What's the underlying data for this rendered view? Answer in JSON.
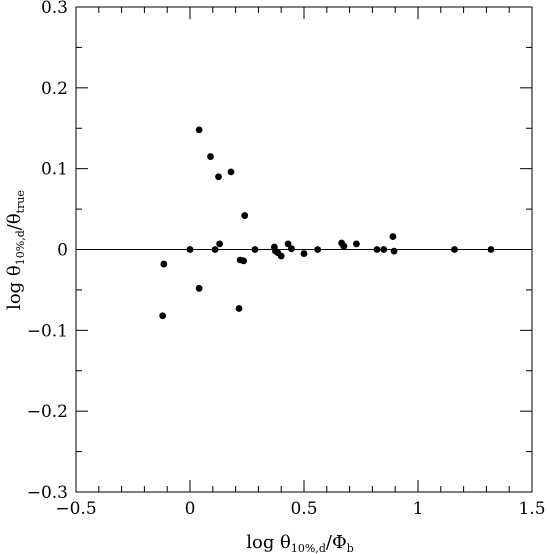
{
  "chart_data": {
    "type": "scatter",
    "xlabel": {
      "prefix": "log  θ",
      "sub": "10%,d",
      "suffix": "/Φ",
      "sub2": "b"
    },
    "ylabel": {
      "prefix": "log  θ",
      "sub": "10%,d",
      "suffix": "/θ",
      "sub2": "true"
    },
    "xlim": [
      -0.5,
      1.5
    ],
    "ylim": [
      -0.3,
      0.3
    ],
    "x_ticks": [
      -0.5,
      0,
      0.5,
      1,
      1.5
    ],
    "x_tick_labels": [
      "−0.5",
      "0",
      "0.5",
      "1",
      "1.5"
    ],
    "y_ticks": [
      -0.3,
      -0.2,
      -0.1,
      0,
      0.1,
      0.2,
      0.3
    ],
    "y_tick_labels": [
      "−0.3",
      "−0.2",
      "−0.1",
      "0",
      "0.1",
      "0.2",
      "0.3"
    ],
    "x_minor_step": 0.1,
    "y_minor_step": 0.05,
    "reference_line_y": 0,
    "grid": false,
    "points": [
      {
        "x": -0.12,
        "y": -0.082
      },
      {
        "x": -0.115,
        "y": -0.018
      },
      {
        "x": 0.0,
        "y": 0.0
      },
      {
        "x": 0.04,
        "y": 0.148
      },
      {
        "x": 0.04,
        "y": -0.048
      },
      {
        "x": 0.09,
        "y": 0.115
      },
      {
        "x": 0.11,
        "y": 0.0
      },
      {
        "x": 0.125,
        "y": 0.09
      },
      {
        "x": 0.13,
        "y": 0.007
      },
      {
        "x": 0.18,
        "y": 0.096
      },
      {
        "x": 0.215,
        "y": -0.073
      },
      {
        "x": 0.22,
        "y": -0.013
      },
      {
        "x": 0.235,
        "y": -0.014
      },
      {
        "x": 0.24,
        "y": 0.042
      },
      {
        "x": 0.285,
        "y": 0.0
      },
      {
        "x": 0.37,
        "y": 0.003
      },
      {
        "x": 0.375,
        "y": -0.002
      },
      {
        "x": 0.385,
        "y": -0.004
      },
      {
        "x": 0.4,
        "y": -0.008
      },
      {
        "x": 0.43,
        "y": 0.007
      },
      {
        "x": 0.445,
        "y": 0.001
      },
      {
        "x": 0.5,
        "y": -0.005
      },
      {
        "x": 0.56,
        "y": 0.0
      },
      {
        "x": 0.665,
        "y": 0.008
      },
      {
        "x": 0.675,
        "y": 0.004
      },
      {
        "x": 0.73,
        "y": 0.007
      },
      {
        "x": 0.82,
        "y": 0.0
      },
      {
        "x": 0.85,
        "y": 0.0
      },
      {
        "x": 0.89,
        "y": 0.016
      },
      {
        "x": 0.895,
        "y": -0.002
      },
      {
        "x": 1.16,
        "y": 0.0
      },
      {
        "x": 1.32,
        "y": 0.0
      }
    ]
  }
}
